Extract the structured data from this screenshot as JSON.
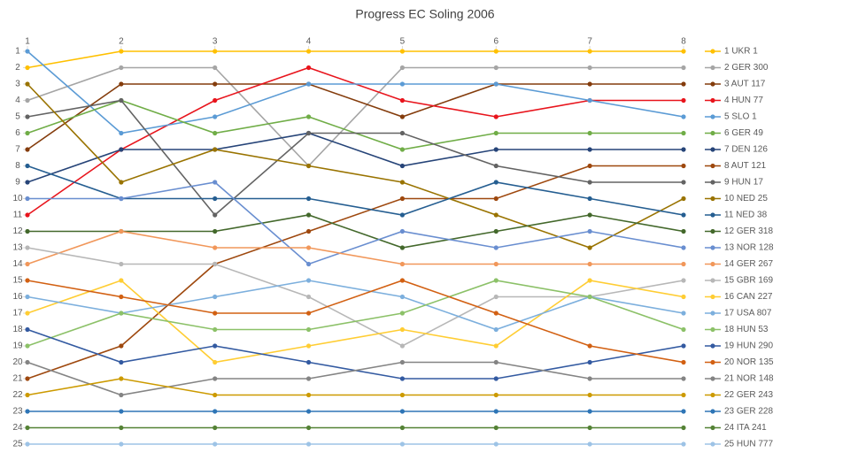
{
  "chart_data": {
    "type": "line",
    "title": "Progress EC Soling 2006",
    "x": [
      1,
      2,
      3,
      4,
      5,
      6,
      7,
      8
    ],
    "xlim": [
      1,
      8
    ],
    "xticks": [
      1,
      2,
      3,
      4,
      5,
      6,
      7,
      8
    ],
    "ylim": [
      25,
      1
    ],
    "yticks": [
      1,
      2,
      3,
      4,
      5,
      6,
      7,
      8,
      9,
      10,
      11,
      12,
      13,
      14,
      15,
      16,
      17,
      18,
      19,
      20,
      21,
      22,
      23,
      24,
      25
    ],
    "legend": "right",
    "series": [
      {
        "name": "1 UKR 1",
        "color": "#ffc000",
        "values": [
          2,
          1,
          1,
          1,
          1,
          1,
          1,
          1
        ]
      },
      {
        "name": "2 GER 300",
        "color": "#a5a5a5",
        "values": [
          4,
          2,
          2,
          8,
          2,
          2,
          2,
          2
        ]
      },
      {
        "name": "3 AUT 117",
        "color": "#843c0c",
        "values": [
          7,
          3,
          3,
          3,
          5,
          3,
          3,
          3
        ]
      },
      {
        "name": "4 HUN 77",
        "color": "#e8141c",
        "values": [
          11,
          7,
          4,
          2,
          4,
          5,
          4,
          4
        ]
      },
      {
        "name": "5 SLO 1",
        "color": "#5b9bd5",
        "values": [
          1,
          6,
          5,
          3,
          3,
          3,
          4,
          5
        ]
      },
      {
        "name": "6 GER 49",
        "color": "#70ad47",
        "values": [
          6,
          4,
          6,
          5,
          7,
          6,
          6,
          6
        ]
      },
      {
        "name": "7 DEN 126",
        "color": "#264478",
        "values": [
          9,
          7,
          7,
          6,
          8,
          7,
          7,
          7
        ]
      },
      {
        "name": "8 AUT 121",
        "color": "#9e480e",
        "values": [
          21,
          19,
          14,
          12,
          10,
          10,
          8,
          8
        ]
      },
      {
        "name": "9 HUN 17",
        "color": "#636363",
        "values": [
          5,
          4,
          11,
          6,
          6,
          8,
          9,
          9
        ]
      },
      {
        "name": "10 NED 25",
        "color": "#997300",
        "values": [
          3,
          9,
          7,
          8,
          9,
          11,
          13,
          10
        ]
      },
      {
        "name": "11 NED 38",
        "color": "#255e91",
        "values": [
          8,
          10,
          10,
          10,
          11,
          9,
          10,
          11
        ]
      },
      {
        "name": "12 GER 318",
        "color": "#43682b",
        "values": [
          12,
          12,
          12,
          11,
          13,
          12,
          11,
          12
        ]
      },
      {
        "name": "13 NOR 128",
        "color": "#698ed0",
        "values": [
          10,
          10,
          9,
          14,
          12,
          13,
          12,
          13
        ]
      },
      {
        "name": "14 GER 267",
        "color": "#f1975a",
        "values": [
          14,
          12,
          13,
          13,
          14,
          14,
          14,
          14
        ]
      },
      {
        "name": "15 GBR 169",
        "color": "#b7b7b7",
        "values": [
          13,
          14,
          14,
          16,
          19,
          16,
          16,
          15
        ]
      },
      {
        "name": "16 CAN 227",
        "color": "#ffcd33",
        "values": [
          17,
          15,
          20,
          19,
          18,
          19,
          15,
          16
        ]
      },
      {
        "name": "17 USA 807",
        "color": "#7cafdd",
        "values": [
          16,
          17,
          16,
          15,
          16,
          18,
          16,
          17
        ]
      },
      {
        "name": "18 HUN 53",
        "color": "#8cc168",
        "values": [
          19,
          17,
          18,
          18,
          17,
          15,
          16,
          18
        ]
      },
      {
        "name": "19 HUN 290",
        "color": "#335aa1",
        "values": [
          18,
          20,
          19,
          20,
          21,
          21,
          20,
          19
        ]
      },
      {
        "name": "20 NOR 135",
        "color": "#d26012",
        "values": [
          15,
          16,
          17,
          17,
          15,
          17,
          19,
          20
        ]
      },
      {
        "name": "21 NOR 148",
        "color": "#848484",
        "values": [
          20,
          22,
          21,
          21,
          20,
          20,
          21,
          21
        ]
      },
      {
        "name": "22 GER 243",
        "color": "#cc9a00",
        "values": [
          22,
          21,
          22,
          22,
          22,
          22,
          22,
          22
        ]
      },
      {
        "name": "23 GER 228",
        "color": "#2e75b6",
        "values": [
          23,
          23,
          23,
          23,
          23,
          23,
          23,
          23
        ]
      },
      {
        "name": "24 ITA 241",
        "color": "#548235",
        "values": [
          24,
          24,
          24,
          24,
          24,
          24,
          24,
          24
        ]
      },
      {
        "name": "25 HUN 777",
        "color": "#9dc3e6",
        "values": [
          25,
          25,
          25,
          25,
          25,
          25,
          25,
          25
        ]
      }
    ]
  }
}
